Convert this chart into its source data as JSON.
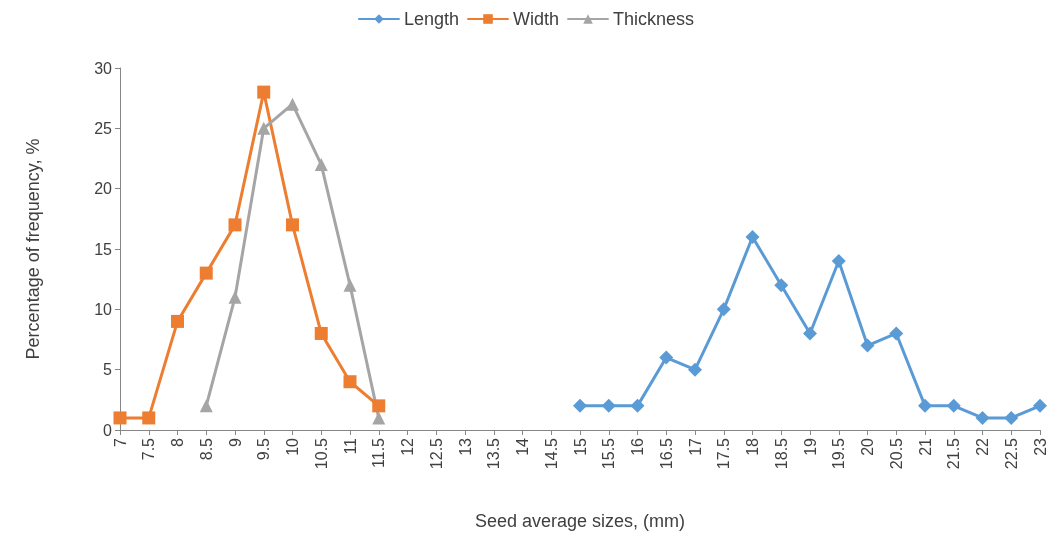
{
  "chart_data": {
    "type": "line",
    "xlabel": "Seed average sizes, (mm)",
    "ylabel": "Percentage of frequency, %",
    "categories": [
      "7",
      "7.5",
      "8",
      "8.5",
      "9",
      "9.5",
      "10",
      "10.5",
      "11",
      "11.5",
      "12",
      "12.5",
      "13",
      "13.5",
      "14",
      "14.5",
      "15",
      "15.5",
      "16",
      "16.5",
      "17",
      "17.5",
      "18",
      "18.5",
      "19",
      "19.5",
      "20",
      "20.5",
      "21",
      "21.5",
      "22",
      "22.5",
      "23"
    ],
    "series": [
      {
        "name": "Length",
        "color": "#5b9bd5",
        "marker": "diamond",
        "values": [
          null,
          null,
          null,
          null,
          null,
          null,
          null,
          null,
          null,
          null,
          null,
          null,
          null,
          null,
          null,
          null,
          2,
          2,
          2,
          6,
          5,
          10,
          16,
          12,
          8,
          14,
          7,
          8,
          2,
          2,
          1,
          1,
          2
        ]
      },
      {
        "name": "Width",
        "color": "#ed7d31",
        "marker": "square",
        "values": [
          1,
          1,
          9,
          13,
          17,
          28,
          17,
          8,
          4,
          2,
          null,
          null,
          null,
          null,
          null,
          null,
          null,
          null,
          null,
          null,
          null,
          null,
          null,
          null,
          null,
          null,
          null,
          null,
          null,
          null,
          null,
          null,
          null
        ]
      },
      {
        "name": "Thickness",
        "color": "#a5a5a5",
        "marker": "triangle",
        "values": [
          null,
          null,
          null,
          2,
          11,
          25,
          27,
          22,
          12,
          1,
          null,
          null,
          null,
          null,
          null,
          null,
          null,
          null,
          null,
          null,
          null,
          null,
          null,
          null,
          null,
          null,
          null,
          null,
          null,
          null,
          null,
          null,
          null
        ]
      }
    ],
    "ylim": [
      0,
      30
    ],
    "yticks": [
      0,
      5,
      10,
      15,
      20,
      25,
      30
    ],
    "grid": false,
    "legend": "top",
    "line_style": "solid"
  }
}
